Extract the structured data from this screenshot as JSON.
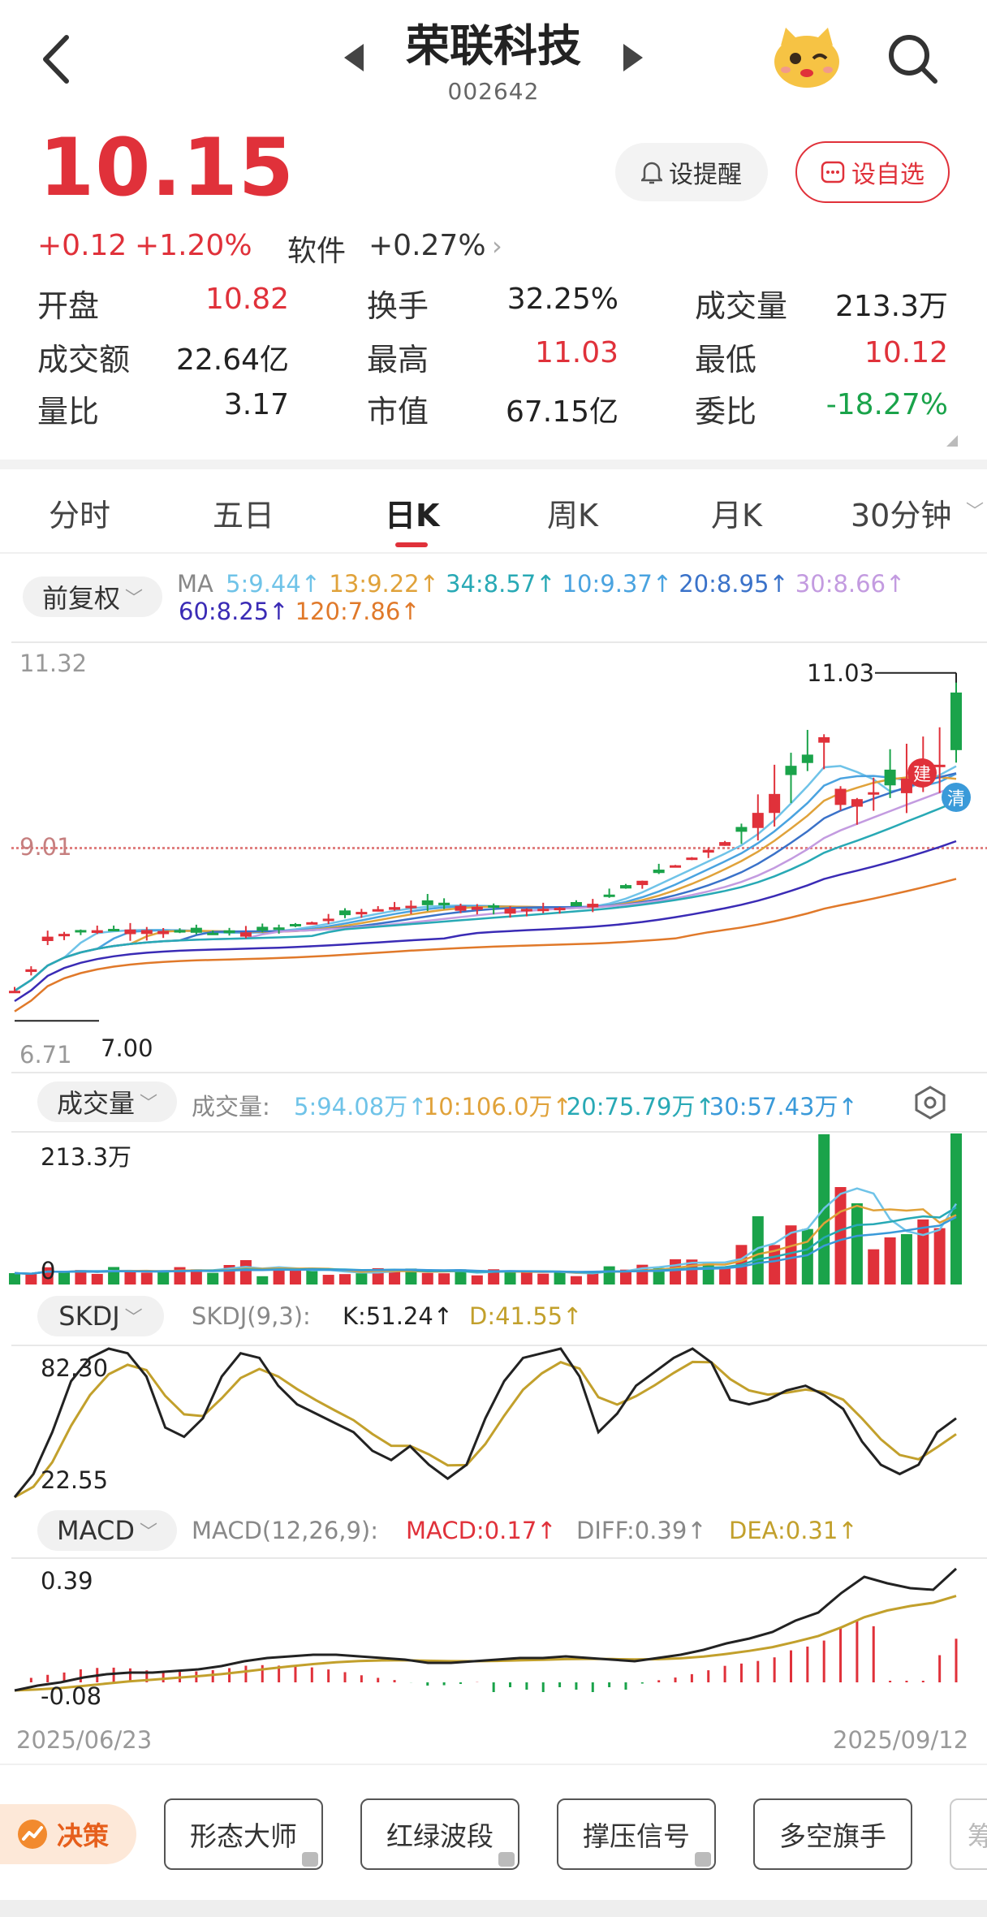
{
  "header": {
    "title": "荣联科技",
    "code": "002642"
  },
  "quote": {
    "price": "10.15",
    "change": "+0.12",
    "change_pct": "+1.20%",
    "sector": "软件",
    "sector_pct": "+0.27%",
    "remind_label": "设提醒",
    "add_fav_label": "设自选"
  },
  "stats": [
    [
      {
        "label": "开盘",
        "value": "10.82",
        "color": "red"
      },
      {
        "label": "换手",
        "value": "32.25%",
        "color": "dark"
      },
      {
        "label": "成交量",
        "value": "213.3万",
        "color": "dark"
      }
    ],
    [
      {
        "label": "成交额",
        "value": "22.64亿",
        "color": "dark"
      },
      {
        "label": "最高",
        "value": "11.03",
        "color": "red"
      },
      {
        "label": "最低",
        "value": "10.12",
        "color": "red"
      }
    ],
    [
      {
        "label": "量比",
        "value": "3.17",
        "color": "dark"
      },
      {
        "label": "市值",
        "value": "67.15亿",
        "color": "dark"
      },
      {
        "label": "委比",
        "value": "-18.27%",
        "color": "green"
      }
    ]
  ],
  "tabs": [
    "分时",
    "五日",
    "日K",
    "周K",
    "月K",
    "30分钟"
  ],
  "active_tab": "日K",
  "adjust_label": "前复权",
  "ma": {
    "prefix": "MA",
    "row1": [
      {
        "text": "5:9.44↑",
        "color": "#6fc3e8"
      },
      {
        "text": "13:9.22↑",
        "color": "#e0a23a"
      },
      {
        "text": "34:8.57↑",
        "color": "#28a9b5"
      },
      {
        "text": "10:9.37↑",
        "color": "#4aa3e0"
      },
      {
        "text": "20:8.95↑",
        "color": "#3a72c9"
      },
      {
        "text": "30:8.66↑",
        "color": "#c39be0"
      }
    ],
    "row2": [
      {
        "text": "60:8.25↑",
        "color": "#3a2bb5"
      },
      {
        "text": "120:7.86↑",
        "color": "#e0792a"
      }
    ]
  },
  "kline": {
    "y_top_label": "11.32",
    "y_mid_label": "9.01",
    "y_bottom_label": "6.71",
    "high_label": "11.03",
    "low_label": "7.00",
    "buy_tag": "建",
    "clear_tag": "清"
  },
  "volume": {
    "pill": "成交量",
    "label": "成交量:",
    "items": [
      {
        "text": "5:94.08万↑",
        "color": "#6fc3e8"
      },
      {
        "text": "10:106.0万↑",
        "color": "#e0a23a"
      },
      {
        "text": "20:75.79万↑",
        "color": "#28a9b5"
      },
      {
        "text": "30:57.43万↑",
        "color": "#3a9ad9"
      }
    ],
    "top_label": "213.3万",
    "zero_label": "0"
  },
  "skdj": {
    "pill": "SKDJ",
    "label": "SKDJ(9,3):",
    "k": "K:51.24↑",
    "d": "D:41.55↑",
    "top_label": "82.30",
    "bottom_label": "22.55"
  },
  "macd": {
    "pill": "MACD",
    "label": "MACD(12,26,9):",
    "macd": "MACD:0.17↑",
    "diff": "DIFF:0.39↑",
    "dea": "DEA:0.31↑",
    "top_label": "0.39",
    "bottom_label": "-0.08"
  },
  "date_start": "2025/06/23",
  "date_end": "2025/09/12",
  "toolbar": {
    "decision": "决策",
    "tools": [
      "形态大师",
      "红绿波段",
      "撑压信号",
      "多空旗手"
    ],
    "cut": "筹"
  },
  "colors": {
    "up": "#e0313a",
    "down": "#1aa34a",
    "k_line": "#222222",
    "d_line": "#c2a02c"
  }
}
